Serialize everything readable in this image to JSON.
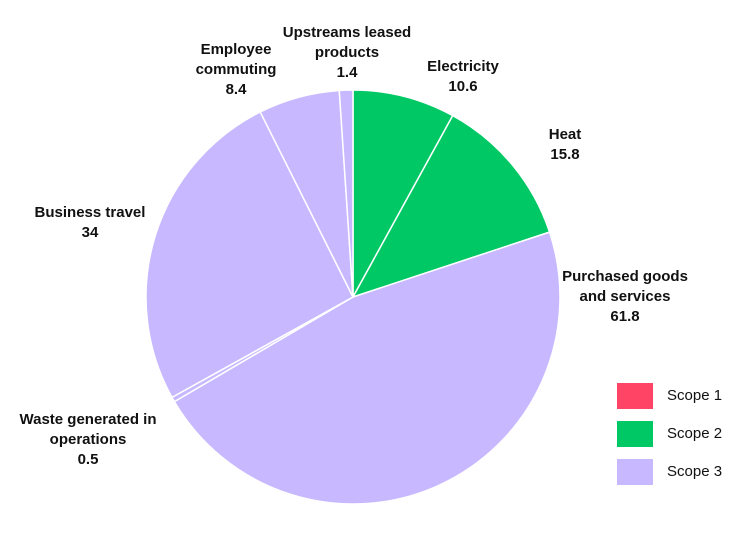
{
  "chart_data": {
    "type": "pie",
    "categories": [
      "Electricity",
      "Heat",
      "Purchased goods and services",
      "Waste generated in operations",
      "Business travel",
      "Employee commuting",
      "Upstreams leased products"
    ],
    "values": [
      10.6,
      15.8,
      61.8,
      0.5,
      34,
      8.4,
      1.4
    ],
    "colors": [
      "#00c864",
      "#00c864",
      "#c8b8ff",
      "#c8b8ff",
      "#c8b8ff",
      "#c8b8ff",
      "#c8b8ff"
    ],
    "legend": [
      {
        "name": "Scope 1",
        "color": "#ff4466"
      },
      {
        "name": "Scope 2",
        "color": "#00c864"
      },
      {
        "name": "Scope 3",
        "color": "#c8b8ff"
      }
    ]
  }
}
